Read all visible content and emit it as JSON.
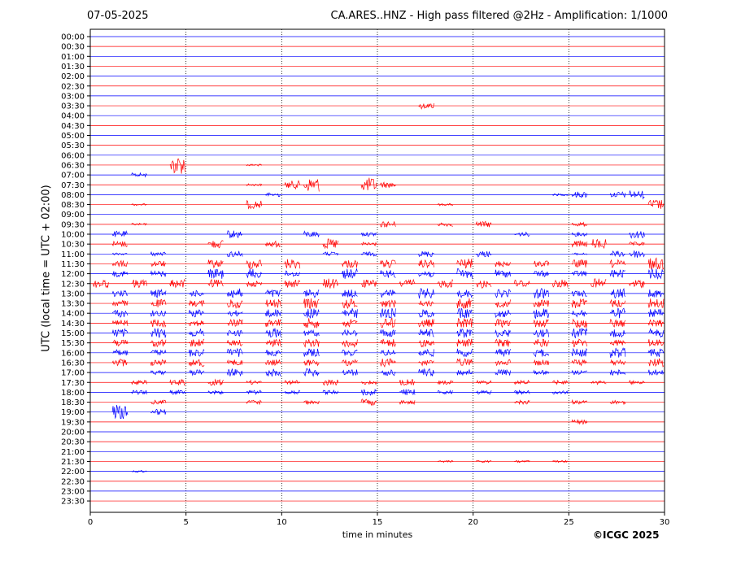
{
  "header": {
    "date": "07-05-2025",
    "title": "CA.ARES..HNZ - High pass filtered @2Hz - Amplification: 1/1000"
  },
  "credit": "©ICGC 2025",
  "chart_data": {
    "type": "line",
    "xlabel": "time in minutes",
    "ylabel": "UTC (local time = UTC + 02:00)",
    "xlim": [
      0,
      30
    ],
    "x_ticks": [
      "0",
      "5",
      "10",
      "15",
      "20",
      "25",
      "30"
    ],
    "x_tick_values": [
      0,
      5,
      10,
      15,
      20,
      25,
      30
    ],
    "grid": "vertical dotted at x ticks",
    "trace_colors": [
      "#0000ff",
      "#ff0000"
    ],
    "row_labels": [
      "00:00",
      "00:30",
      "01:00",
      "01:30",
      "02:00",
      "02:30",
      "03:00",
      "03:30",
      "04:00",
      "04:30",
      "05:00",
      "05:30",
      "06:00",
      "06:30",
      "07:00",
      "07:30",
      "08:00",
      "08:30",
      "09:00",
      "09:30",
      "10:00",
      "10:30",
      "11:00",
      "11:30",
      "12:00",
      "12:30",
      "13:00",
      "13:30",
      "14:00",
      "14:30",
      "15:00",
      "15:30",
      "16:00",
      "16:30",
      "17:00",
      "17:30",
      "18:00",
      "18:30",
      "19:00",
      "19:30",
      "20:00",
      "20:30",
      "21:00",
      "21:30",
      "22:00",
      "22:30",
      "23:00",
      "23:30"
    ],
    "trace_rows_ascii": [
      "                              ",
      "                              ",
      "                              ",
      "                              ",
      "                              ",
      "                              ",
      "                              ",
      "                 3            ",
      "                              ",
      "                              ",
      "                              ",
      "                              ",
      "                              ",
      "    9   1                    ",
      "  2                           ",
      "        1 47  73              ",
      "         2              13 34 ",
      "  1     4         1          5",
      "                              ",
      "  1            3  2 3    2    ",
      " 3     4   3  2       2  2  4 ",
      " 3    4  3  5 2          35 2 ",
      " 1 2   3    2 2  3  3    1 34 ",
      " 3 3  4 5 5  4 4 4 5 3 3 4 4 6",
      " 3 3  5 5 3  5 4 4 5 4 3 3 4 5",
      "4 4 4 4 3 4 5 4 4 4 5 4 4 5 4 ",
      " 3 4 3 5 4 4 4 4 5 4 4 5 3 5 4",
      " 3 4 3 5 4 5 5 4 3 5 4 4 5 4 5",
      " 4 3 4 3 4 5 5 5 4 5 4 5 4 5 4",
      " 3 4 3 4 4 5 4 5 4 5 4 4 5 4 4",
      " 4 5 4 3 5 3 3 4 4 5 4 4 5 4 4",
      " 3 4 4 3 4 4 5 4 4 4 4 4 4 3 4",
      " 3 3 4 4 3 4 3 3 4 4 4 4 4 5 4",
      " 4 3 4 3 3 3 3 4 3 4 3 3 3 3 4",
      "   2 3 4 4 4 3 3 4 3 3 2 2 3 3",
      "  2 3 3 2 2 3 2 3 2 2 2 2 2 2 ",
      "  2 2 2 2 2 2 3 3 2 2 2 2     ",
      "   2    2  2  3 2     2  2 2  ",
      " 7 3                          ",
      "                         2    ",
      "                              ",
      "                              ",
      "                              ",
      "                  1 1 1 1     ",
      "  1                           ",
      "                              ",
      "                              ",
      "                              "
    ]
  }
}
